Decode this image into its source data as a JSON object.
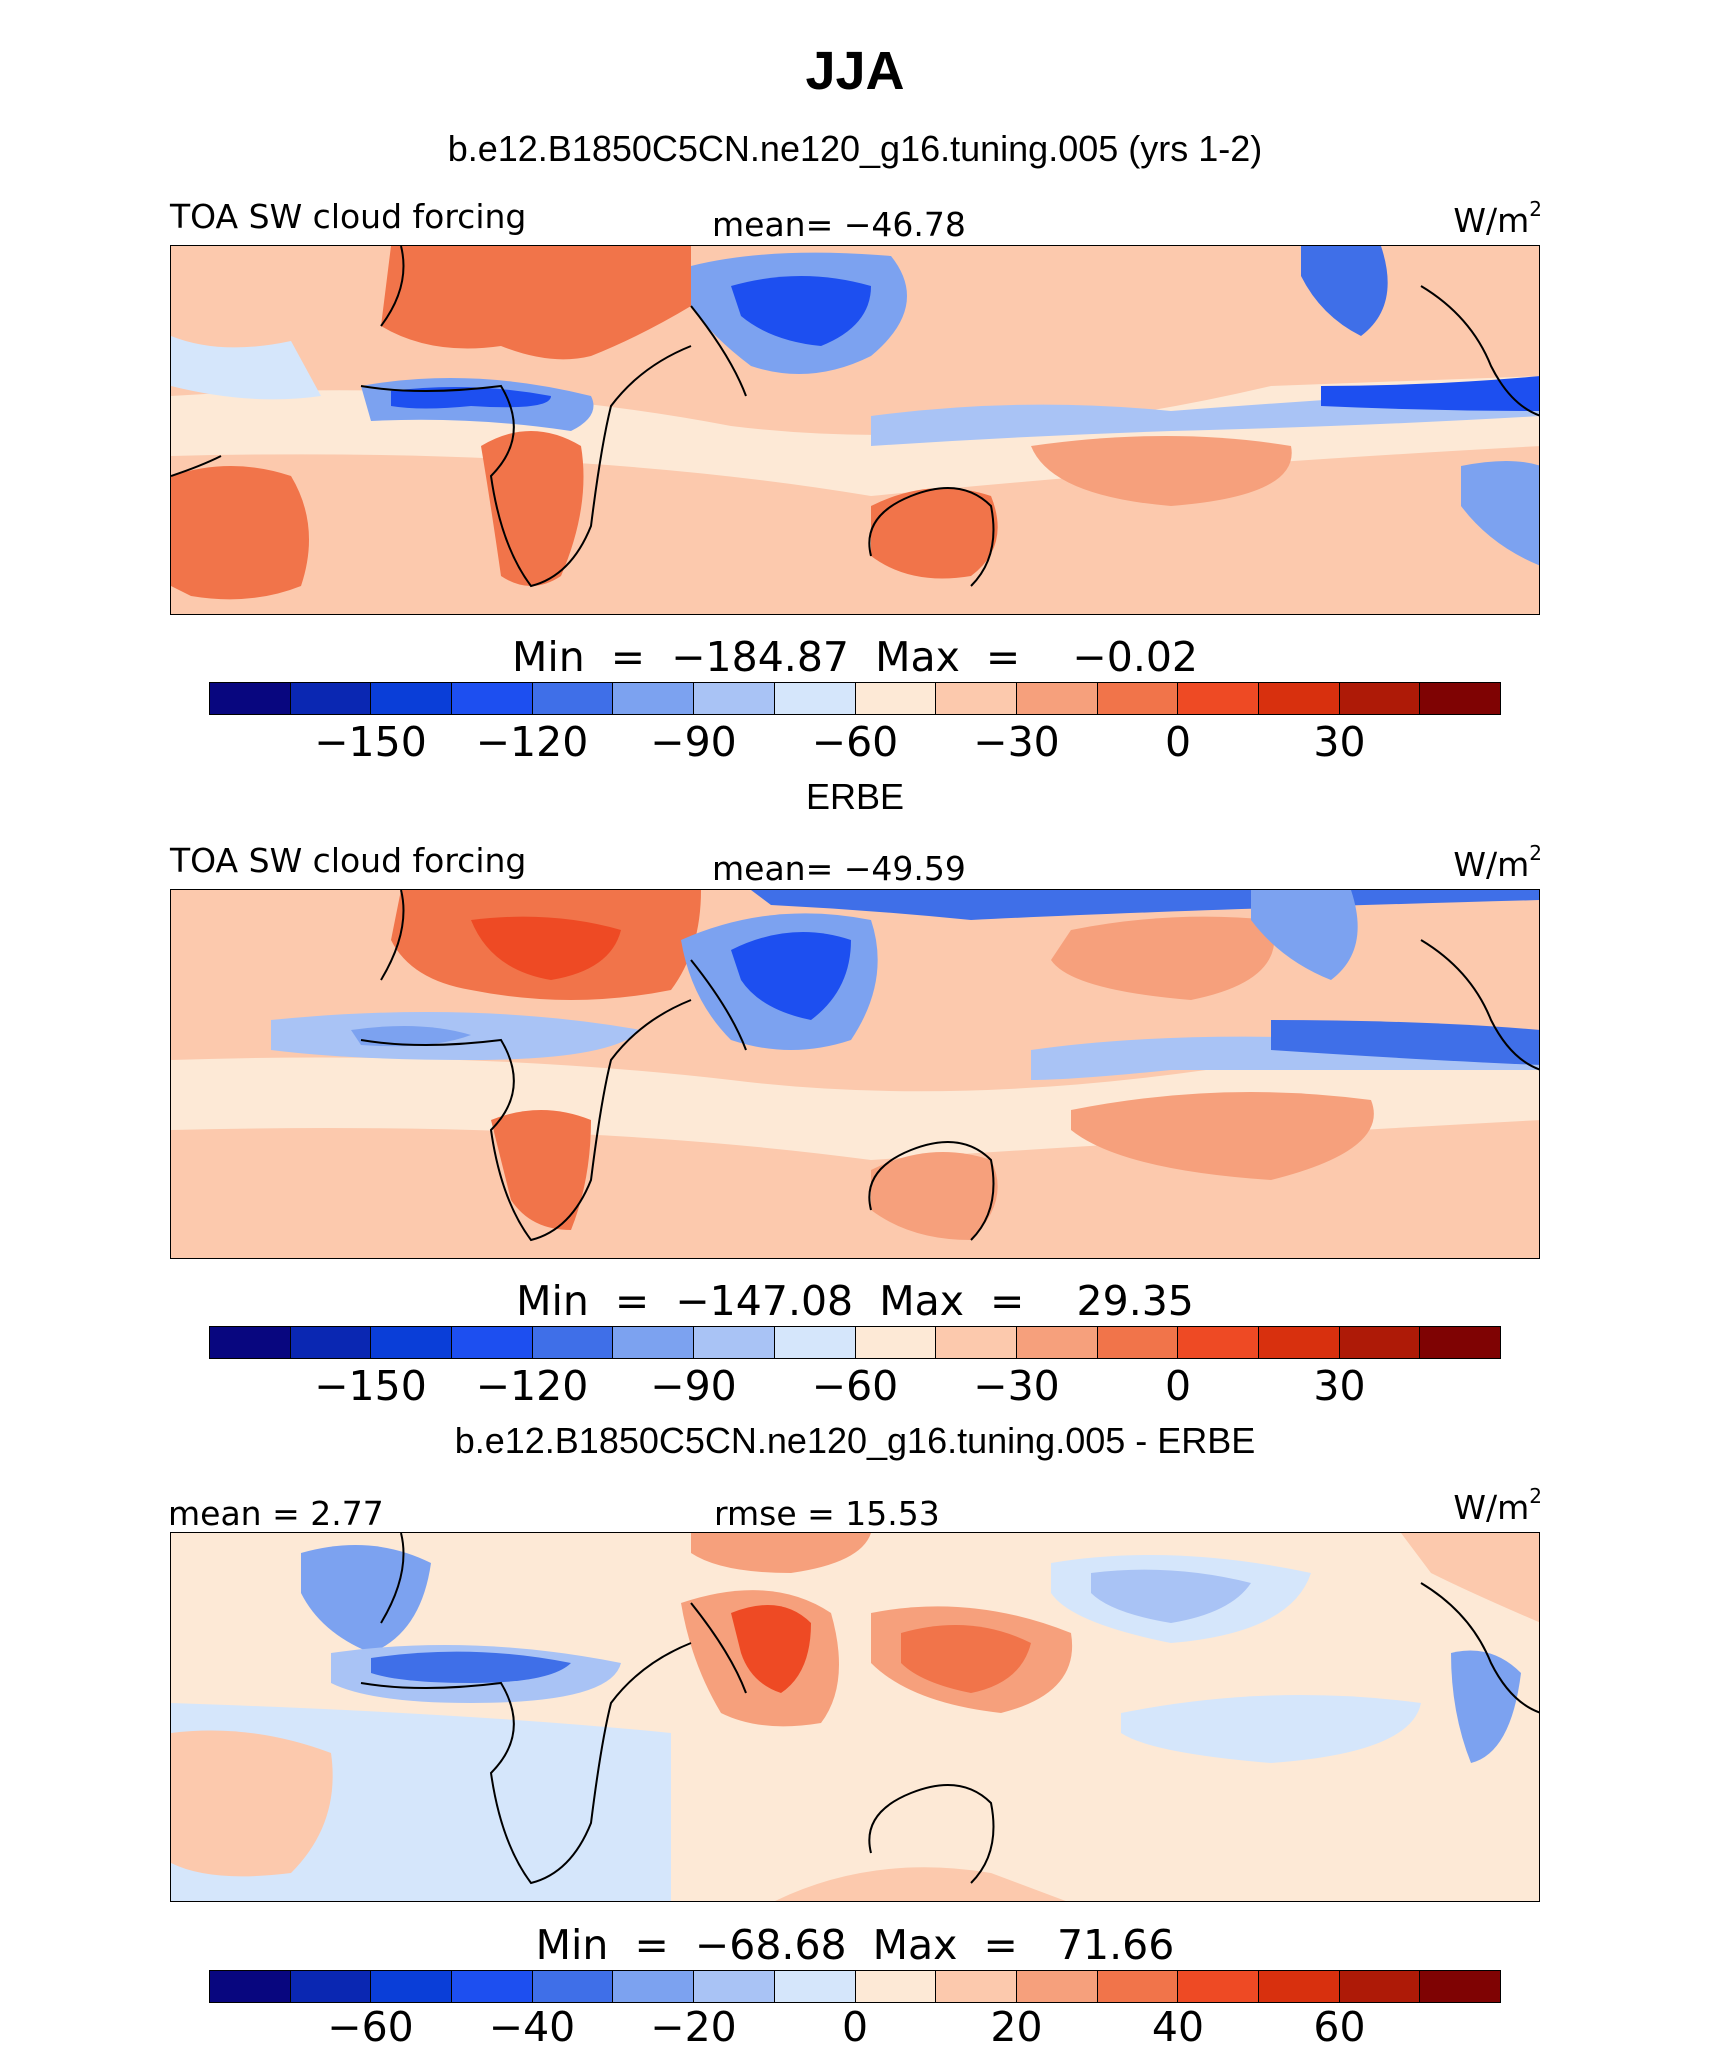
{
  "figure": {
    "title": "JJA",
    "colors": {
      "land_outline": "#000000",
      "background": "#ffffff"
    }
  },
  "panels": [
    {
      "title": "b.e12.B1850C5CN.ne120_g16.tuning.005 (yrs 1-2)",
      "left_label": "TOA SW cloud forcing",
      "center_label": "mean=  −46.78",
      "units": "W/m",
      "units_sup": "2",
      "min_max": "Min  =  −184.87  Max  =    −0.02",
      "colorbar": {
        "colors": [
          "#08067f",
          "#0a27b2",
          "#0a3ed8",
          "#1d4ff0",
          "#3f6fe8",
          "#7ca2f0",
          "#a9c3f5",
          "#d5e6fb",
          "#fde9d6",
          "#fcc9ad",
          "#f6a07c",
          "#f1744a",
          "#ee4a24",
          "#d8300e",
          "#ae1a07",
          "#7f0303"
        ],
        "tick_labels": [
          "−150",
          "−120",
          "−90",
          "−60",
          "−30",
          "0",
          "30"
        ]
      }
    },
    {
      "title": "ERBE",
      "left_label": "TOA SW cloud forcing",
      "center_label": "mean=  −49.59",
      "units": "W/m",
      "units_sup": "2",
      "min_max": "Min  =  −147.08  Max  =    29.35",
      "colorbar": {
        "colors": [
          "#08067f",
          "#0a27b2",
          "#0a3ed8",
          "#1d4ff0",
          "#3f6fe8",
          "#7ca2f0",
          "#a9c3f5",
          "#d5e6fb",
          "#fde9d6",
          "#fcc9ad",
          "#f6a07c",
          "#f1744a",
          "#ee4a24",
          "#d8300e",
          "#ae1a07",
          "#7f0303"
        ],
        "tick_labels": [
          "−150",
          "−120",
          "−90",
          "−60",
          "−30",
          "0",
          "30"
        ]
      }
    },
    {
      "title": "b.e12.B1850C5CN.ne120_g16.tuning.005 - ERBE",
      "left_label": "mean  =    2.77",
      "center_label": "rmse  =   15.53",
      "units": "W/m",
      "units_sup": "2",
      "min_max": "Min  =  −68.68  Max  =   71.66",
      "colorbar": {
        "colors": [
          "#08067f",
          "#0a27b2",
          "#0a3ed8",
          "#1d4ff0",
          "#3f6fe8",
          "#7ca2f0",
          "#a9c3f5",
          "#d5e6fb",
          "#fde9d6",
          "#fcc9ad",
          "#f6a07c",
          "#f1744a",
          "#ee4a24",
          "#d8300e",
          "#ae1a07",
          "#7f0303"
        ],
        "tick_labels": [
          "−60",
          "−40",
          "−20",
          "0",
          "20",
          "40",
          "60"
        ]
      }
    }
  ]
}
